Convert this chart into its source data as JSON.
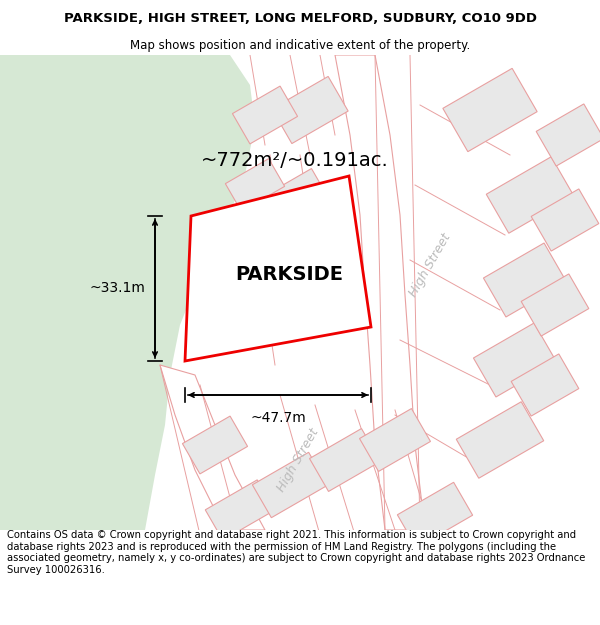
{
  "title": "PARKSIDE, HIGH STREET, LONG MELFORD, SUDBURY, CO10 9DD",
  "subtitle": "Map shows position and indicative extent of the property.",
  "footer": "Contains OS data © Crown copyright and database right 2021. This information is subject to Crown copyright and database rights 2023 and is reproduced with the permission of HM Land Registry. The polygons (including the associated geometry, namely x, y co-ordinates) are subject to Crown copyright and database rights 2023 Ordnance Survey 100026316.",
  "area_label": "~772m²/~0.191ac.",
  "width_label": "~47.7m",
  "height_label": "~33.1m",
  "property_label": "PARKSIDE",
  "bg_color": "#ffffff",
  "map_bg": "#ffffff",
  "park_color": "#d6e8d4",
  "plot_outline_color": "#ee0000",
  "building_fill": "#e8e8e8",
  "road_line_color": "#e8a0a0",
  "parcel_line_color": "#e8a0a0",
  "street_label_color": "#bbbbbb",
  "dim_color": "#000000",
  "title_fontsize": 9.5,
  "subtitle_fontsize": 8.5,
  "footer_fontsize": 7.2,
  "area_fontsize": 14,
  "dim_fontsize": 10,
  "label_fontsize": 14
}
